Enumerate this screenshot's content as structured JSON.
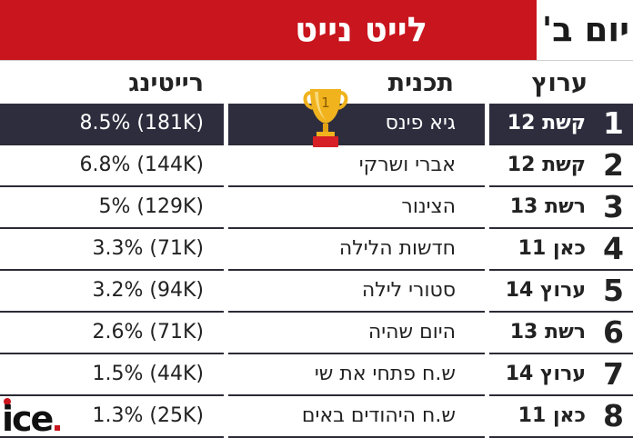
{
  "header": {
    "title": "לייט נייט",
    "day": "יום ב'"
  },
  "columns": {
    "rating": "רייטינג",
    "program": "תכנית",
    "channel": "ערוץ"
  },
  "trophy": {
    "number": "1"
  },
  "rows": [
    {
      "rank": "1",
      "channel": "קשת 12",
      "program": "גיא פינס",
      "rating": "(181K) 8.5%"
    },
    {
      "rank": "2",
      "channel": "קשת 12",
      "program": "אברי ושרקי",
      "rating": "(144K) 6.8%"
    },
    {
      "rank": "3",
      "channel": "רשת 13",
      "program": "הצינור",
      "rating": "(129K) 5%"
    },
    {
      "rank": "4",
      "channel": "כאן 11",
      "program": "חדשות הלילה",
      "rating": "(71K) 3.3%"
    },
    {
      "rank": "5",
      "channel": "ערוץ 14",
      "program": "סטורי לילה",
      "rating": "(94K) 3.2%"
    },
    {
      "rank": "6",
      "channel": "רשת 13",
      "program": "היום שהיה",
      "rating": "(71K) 2.6%"
    },
    {
      "rank": "7",
      "channel": "ערוץ 14",
      "program": "ש.ח פתחי את שי",
      "rating": "(44K) 1.5%"
    },
    {
      "rank": "8",
      "channel": "כאן 11",
      "program": "ש.ח היהודים באים",
      "rating": "(25K) 1.3%"
    }
  ],
  "logo": {
    "text": "ice"
  },
  "colors": {
    "accent": "#c8151e",
    "highlight_row": "#2d2d3e",
    "rule": "#2b2b36",
    "trophy": "#f0b31e"
  }
}
